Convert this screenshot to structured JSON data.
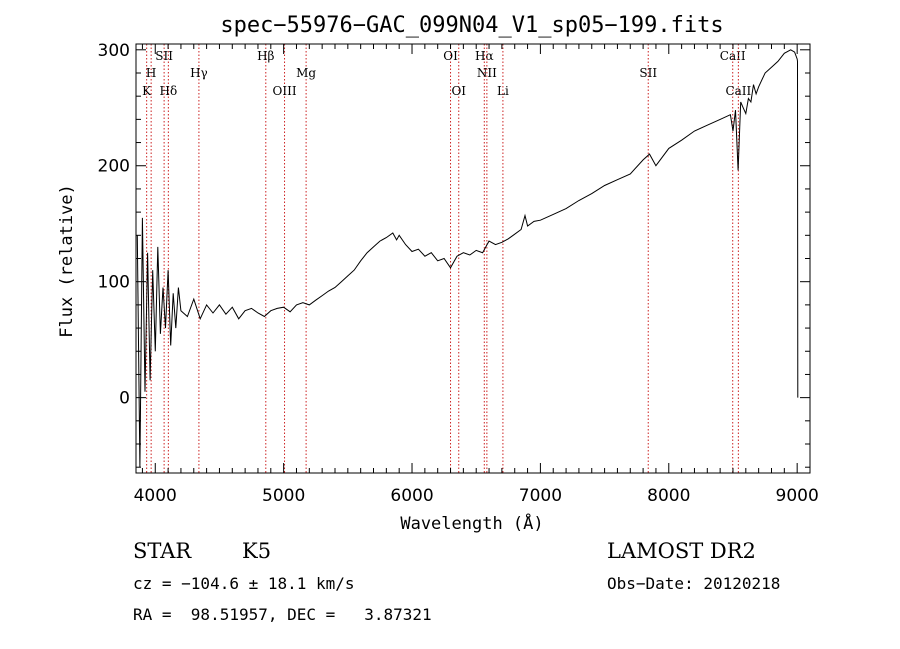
{
  "chart_data": {
    "type": "line",
    "title": "spec−55976−GAC_099N04_V1_sp05−199.fits",
    "xlabel": "Wavelength (Å)",
    "ylabel": "Flux (relative)",
    "xlim": [
      3850,
      9100
    ],
    "ylim": [
      -65,
      305
    ],
    "x_ticks": [
      4000,
      5000,
      6000,
      7000,
      8000,
      9000
    ],
    "y_ticks": [
      0,
      100,
      200,
      300
    ],
    "grid": false,
    "series": [
      {
        "color": "#000000",
        "x": [
          3860,
          3880,
          3900,
          3920,
          3940,
          3960,
          3980,
          4000,
          4020,
          4040,
          4060,
          4080,
          4100,
          4120,
          4140,
          4160,
          4180,
          4200,
          4250,
          4300,
          4350,
          4400,
          4450,
          4500,
          4550,
          4600,
          4650,
          4700,
          4750,
          4800,
          4850,
          4900,
          4950,
          5000,
          5050,
          5100,
          5150,
          5200,
          5250,
          5300,
          5350,
          5400,
          5450,
          5500,
          5550,
          5600,
          5650,
          5700,
          5750,
          5800,
          5850,
          5880,
          5900,
          5950,
          6000,
          6050,
          6100,
          6150,
          6200,
          6250,
          6300,
          6350,
          6400,
          6450,
          6500,
          6550,
          6600,
          6650,
          6700,
          6750,
          6800,
          6850,
          6880,
          6900,
          6950,
          7000,
          7100,
          7200,
          7300,
          7400,
          7500,
          7600,
          7700,
          7800,
          7850,
          7900,
          8000,
          8100,
          8200,
          8300,
          8400,
          8480,
          8500,
          8520,
          8540,
          8560,
          8580,
          8600,
          8620,
          8640,
          8660,
          8680,
          8700,
          8750,
          8800,
          8850,
          8900,
          8950,
          8980,
          9000,
          9003,
          9005
        ],
        "y": [
          140,
          -60,
          155,
          5,
          125,
          15,
          110,
          40,
          130,
          55,
          95,
          60,
          110,
          45,
          90,
          60,
          95,
          75,
          70,
          85,
          68,
          80,
          73,
          80,
          72,
          78,
          68,
          75,
          77,
          73,
          70,
          75,
          77,
          78,
          74,
          80,
          82,
          80,
          84,
          88,
          92,
          95,
          100,
          105,
          110,
          118,
          125,
          130,
          135,
          138,
          142,
          136,
          140,
          132,
          126,
          128,
          122,
          125,
          118,
          120,
          112,
          122,
          125,
          123,
          127,
          125,
          135,
          132,
          134,
          137,
          141,
          145,
          157,
          148,
          152,
          153,
          158,
          163,
          170,
          176,
          183,
          188,
          193,
          205,
          210,
          200,
          215,
          222,
          230,
          235,
          240,
          244,
          230,
          248,
          196,
          255,
          250,
          245,
          258,
          255,
          270,
          262,
          268,
          280,
          285,
          290,
          297,
          300,
          298,
          292,
          290,
          0
        ]
      }
    ],
    "line_markers": [
      {
        "label": "K",
        "wavelength": 3933,
        "row": 2
      },
      {
        "label": "H",
        "wavelength": 3968,
        "row": 1
      },
      {
        "label": "SII",
        "wavelength": 4069,
        "row": 0
      },
      {
        "label": "Hδ",
        "wavelength": 4102,
        "row": 2
      },
      {
        "label": "Hγ",
        "wavelength": 4340,
        "row": 1
      },
      {
        "label": "Hβ",
        "wavelength": 4861,
        "row": 0
      },
      {
        "label": "OIII",
        "wavelength": 5007,
        "row": 2
      },
      {
        "label": "Mg",
        "wavelength": 5175,
        "row": 1
      },
      {
        "label": "OI",
        "wavelength": 6300,
        "row": 0
      },
      {
        "label": "OI",
        "wavelength": 6364,
        "row": 2
      },
      {
        "label": "Hα",
        "wavelength": 6563,
        "row": 0
      },
      {
        "label": "NII",
        "wavelength": 6583,
        "row": 1
      },
      {
        "label": "Li",
        "wavelength": 6708,
        "row": 2
      },
      {
        "label": "SII",
        "wavelength": 7840,
        "row": 1
      },
      {
        "label": "CaII",
        "wavelength": 8498,
        "row": 0
      },
      {
        "label": "CaII",
        "wavelength": 8542,
        "row": 2
      }
    ],
    "marker_color": "#cc2222"
  },
  "info": {
    "object_class": "STAR",
    "subclass": "K5",
    "survey": "LAMOST DR2",
    "redshift_text": "cz = −104.6 ± 18.1 km/s",
    "obs_date_text": "Obs−Date: 20120218",
    "coords_text": "RA =  98.51957, DEC =   3.87321"
  }
}
